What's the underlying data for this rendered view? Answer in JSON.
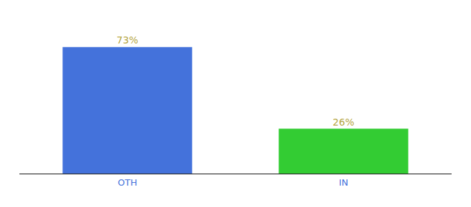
{
  "chart_data": {
    "type": "bar",
    "categories": [
      "OTH",
      "IN"
    ],
    "values": [
      73,
      26
    ],
    "value_labels": [
      "73%",
      "26%"
    ],
    "colors": [
      "#4472db",
      "#33cc33"
    ],
    "ylim": [
      0,
      85
    ],
    "data_labels": true,
    "grid": false,
    "tick_labels": "x"
  }
}
